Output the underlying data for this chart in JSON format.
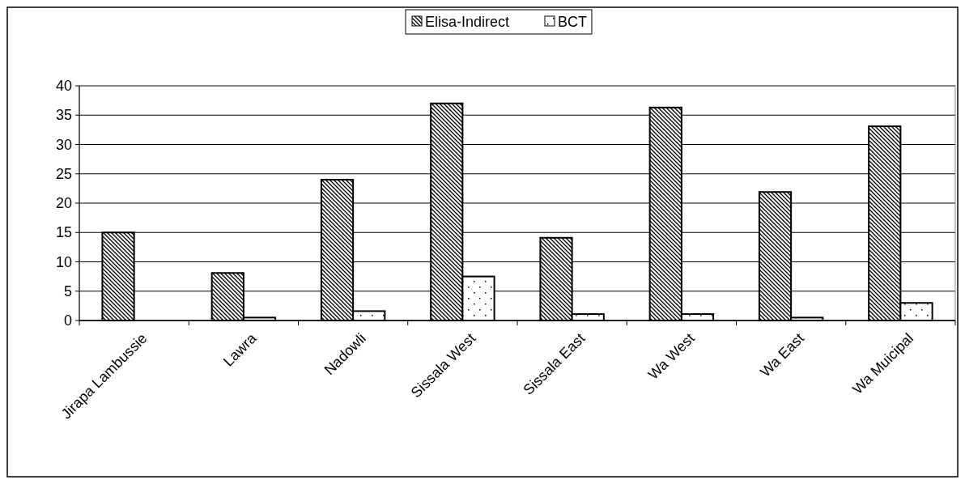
{
  "chart_data": {
    "type": "bar",
    "categories": [
      "Jirapa Lambussie",
      "Lawra",
      "Nadowli",
      "Sissala West",
      "Sissala East",
      "Wa West",
      "Wa East",
      "Wa Muicipal"
    ],
    "series": [
      {
        "name": "Elisa-Indirect",
        "color": "#000000",
        "values": [
          15,
          8.1,
          24,
          37,
          14.1,
          36.3,
          21.9,
          33.1
        ]
      },
      {
        "name": "BCT",
        "color": "#000000",
        "values": [
          0,
          0.5,
          1.6,
          7.5,
          1.1,
          1.1,
          0.5,
          3
        ]
      }
    ],
    "ylim": [
      0,
      40
    ],
    "yticks": [
      0,
      5,
      10,
      15,
      20,
      25,
      30,
      35,
      40
    ],
    "grid": "y",
    "legend": "top"
  }
}
